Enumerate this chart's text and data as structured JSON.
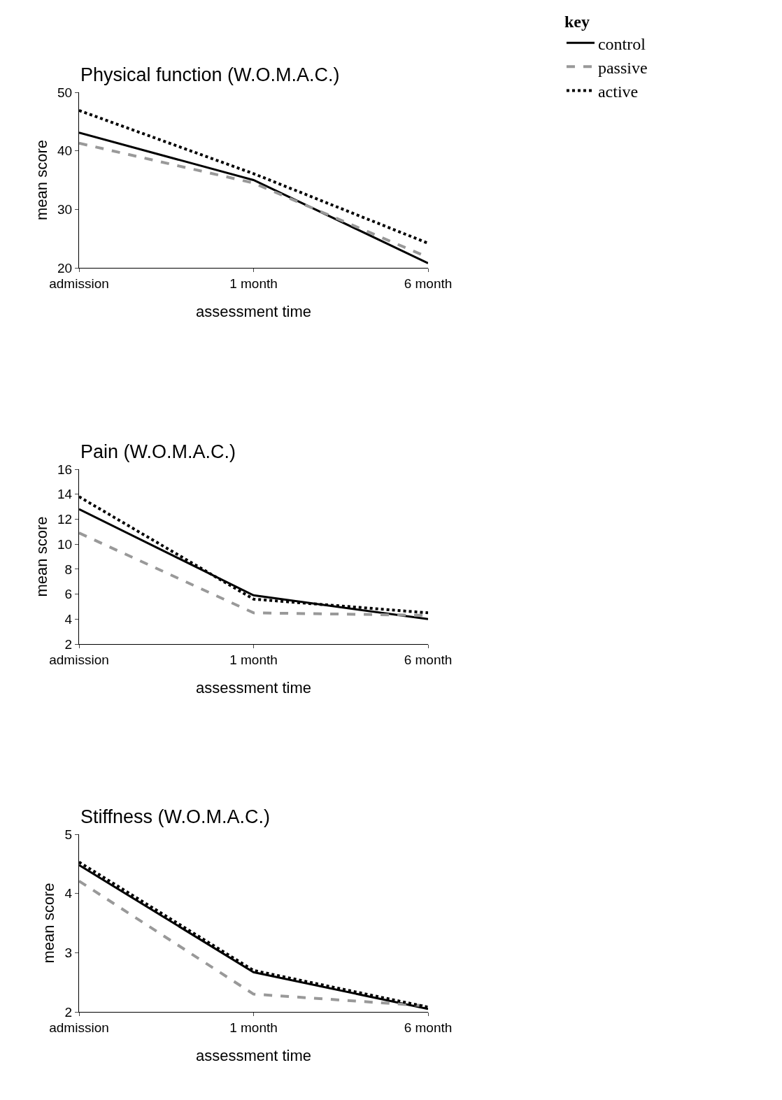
{
  "chart_data": [
    {
      "type": "line",
      "title": "Physical function (W.O.M.A.C.)",
      "xlabel": "assessment time",
      "ylabel": "mean score",
      "categories": [
        "admission",
        "1 month",
        "6 month"
      ],
      "ylim": [
        20,
        50
      ],
      "yticks": [
        20,
        30,
        40,
        50
      ],
      "legend": "top right",
      "legend_title": "key",
      "series": [
        {
          "name": "control",
          "color": "#000000",
          "line_style": "solid",
          "values": [
            43.1,
            35.0,
            20.8
          ]
        },
        {
          "name": "passive",
          "color": "#999999",
          "line_style": "dashed",
          "values": [
            41.3,
            34.5,
            21.8
          ]
        },
        {
          "name": "active",
          "color": "#000000",
          "line_style": "dotted",
          "values": [
            46.9,
            36.1,
            24.2
          ]
        }
      ]
    },
    {
      "type": "line",
      "title": "Pain (W.O.M.A.C.)",
      "xlabel": "assessment time",
      "ylabel": "mean score",
      "categories": [
        "admission",
        "1 month",
        "6 month"
      ],
      "ylim": [
        2,
        16
      ],
      "yticks": [
        2,
        4,
        6,
        8,
        10,
        12,
        14,
        16
      ],
      "series": [
        {
          "color": "#000000",
          "line_style": "solid",
          "values": [
            12.8,
            5.9,
            4.0
          ]
        },
        {
          "color": "#999999",
          "line_style": "dashed",
          "values": [
            10.9,
            4.5,
            4.3
          ]
        },
        {
          "color": "#000000",
          "line_style": "dotted",
          "values": [
            13.8,
            5.6,
            4.5
          ]
        }
      ]
    },
    {
      "type": "line",
      "title": "Stiffness (W.O.M.A.C.)",
      "xlabel": "assessment time",
      "ylabel": "mean score",
      "categories": [
        "admission",
        "1 month",
        "6 month"
      ],
      "ylim": [
        2,
        5
      ],
      "yticks": [
        2,
        3,
        4,
        5
      ],
      "series": [
        {
          "color": "#000000",
          "line_style": "solid",
          "values": [
            4.48,
            2.67,
            2.05
          ]
        },
        {
          "color": "#999999",
          "line_style": "dashed",
          "values": [
            4.21,
            2.3,
            2.1
          ]
        },
        {
          "color": "#000000",
          "line_style": "dotted",
          "values": [
            4.53,
            2.7,
            2.08
          ]
        }
      ]
    }
  ]
}
